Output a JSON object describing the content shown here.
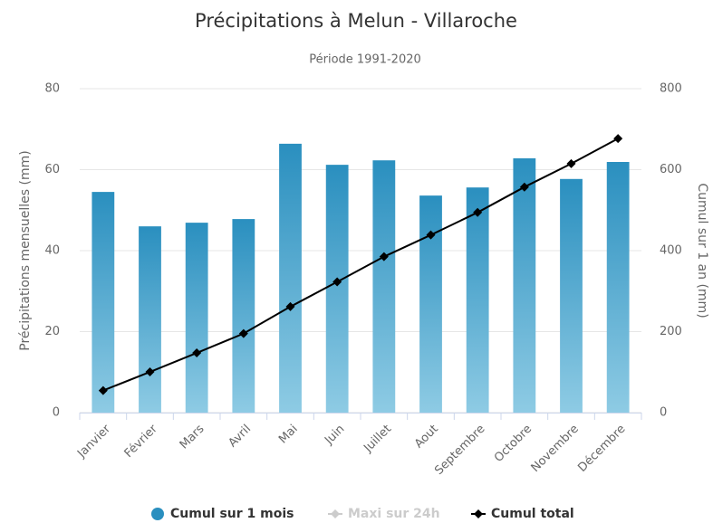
{
  "chart_data": {
    "type": "bar",
    "title": "Précipitations à Melun - Villaroche",
    "subtitle": "Période 1991-2020",
    "y_label": "Précipitations mensuelles (mm)",
    "y2_label": "Cumul sur 1 an (mm)",
    "categories": [
      "Janvier",
      "Février",
      "Mars",
      "Avril",
      "Mai",
      "Juin",
      "Juillet",
      "Aout",
      "Septembre",
      "Octobre",
      "Novembre",
      "Décembre"
    ],
    "series": [
      {
        "name": "Cumul sur 1 mois",
        "color": "#2a8fbf",
        "type": "bar",
        "values": [
          54.5,
          46.0,
          46.9,
          47.8,
          66.4,
          61.2,
          62.3,
          53.6,
          55.6,
          62.8,
          57.7,
          61.9
        ]
      },
      {
        "name": "Maxi sur 24h",
        "color": "#cccccc",
        "type": "hidden"
      },
      {
        "name": "Cumul total",
        "color": "#000000",
        "type": "line",
        "axis": "y2",
        "values": [
          54.5,
          100.5,
          147.4,
          195.2,
          261.6,
          322.8,
          385.1,
          438.7,
          494.3,
          557.1,
          614.8,
          676.7
        ]
      }
    ],
    "ylim": [
      0,
      80
    ],
    "yticks": [
      0,
      20,
      40,
      60,
      80
    ],
    "y2lim": [
      0,
      800
    ],
    "y2ticks": [
      0,
      200,
      400,
      600,
      800
    ],
    "grid": true,
    "legend": "bottom"
  }
}
